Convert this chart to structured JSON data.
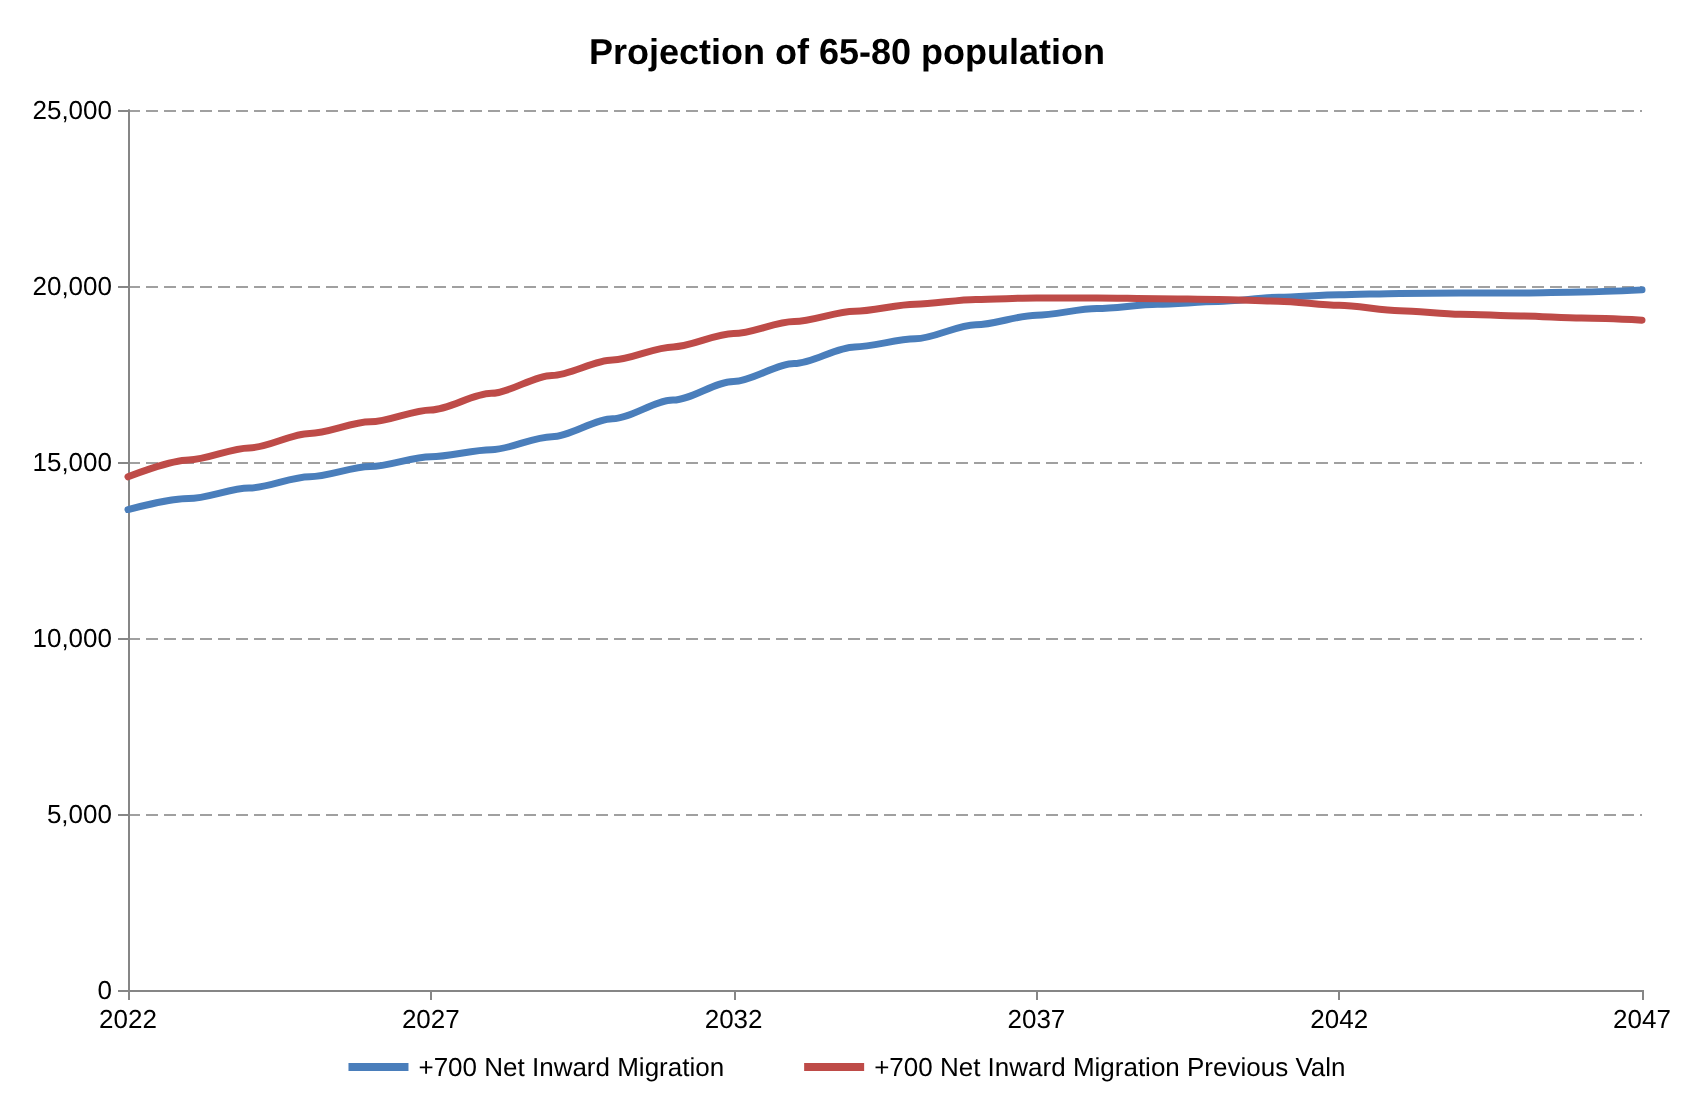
{
  "chart_data": {
    "type": "line",
    "title": "Projection of 65-80 population",
    "x": [
      2022,
      2023,
      2024,
      2025,
      2026,
      2027,
      2028,
      2029,
      2030,
      2031,
      2032,
      2033,
      2034,
      2035,
      2036,
      2037,
      2038,
      2039,
      2040,
      2041,
      2042,
      2043,
      2044,
      2045,
      2046,
      2047
    ],
    "series": [
      {
        "name": "+700 Net Inward Migration",
        "color": "#4a7ebb",
        "values": [
          13650,
          13960,
          14260,
          14580,
          14870,
          15150,
          15350,
          15720,
          16230,
          16760,
          17290,
          17800,
          18270,
          18500,
          18900,
          19170,
          19360,
          19480,
          19560,
          19680,
          19750,
          19790,
          19800,
          19800,
          19830,
          19890
        ]
      },
      {
        "name": "+700 Net Inward Migration Previous Valn",
        "color": "#be4b48",
        "values": [
          14580,
          15060,
          15400,
          15810,
          16140,
          16480,
          16950,
          17460,
          17900,
          18270,
          18650,
          18990,
          19280,
          19480,
          19620,
          19660,
          19660,
          19640,
          19620,
          19570,
          19450,
          19300,
          19200,
          19150,
          19090,
          19030
        ]
      }
    ],
    "xlim": [
      2022,
      2047
    ],
    "xticks": [
      2022,
      2027,
      2032,
      2037,
      2042,
      2047
    ],
    "ylim": [
      0,
      25000
    ],
    "yticks": [
      0,
      {
        "value": 5000,
        "label": "5,000"
      },
      {
        "value": 10000,
        "label": "10,000"
      },
      {
        "value": 15000,
        "label": "15,000"
      },
      {
        "value": 20000,
        "label": "20,000"
      },
      {
        "value": 25000,
        "label": "25,000"
      }
    ],
    "grid": "y",
    "legend": "bottom",
    "marker": "none",
    "line_style": "solid"
  }
}
